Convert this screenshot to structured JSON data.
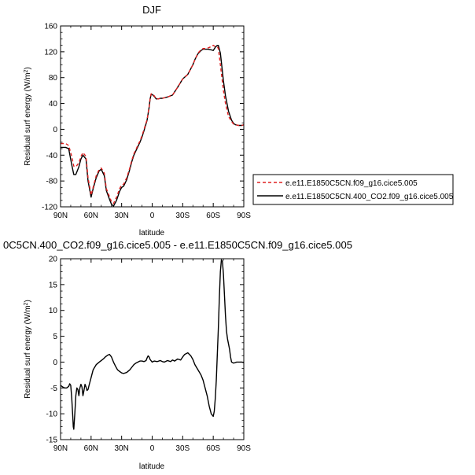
{
  "chart_data": [
    {
      "type": "line",
      "title": "DJF",
      "xlabel": "latitude",
      "ylabel": "Residual surf energy (W/m",
      "ylabel_sup": "2",
      "ylabel_close": ")",
      "xlim": [
        90,
        -90
      ],
      "ylim": [
        -120,
        160
      ],
      "x_ticks": [
        {
          "value": 90,
          "label": "90N"
        },
        {
          "value": 60,
          "label": "60N"
        },
        {
          "value": 30,
          "label": "30N"
        },
        {
          "value": 0,
          "label": "0"
        },
        {
          "value": -30,
          "label": "30S"
        },
        {
          "value": -60,
          "label": "60S"
        },
        {
          "value": -90,
          "label": "90S"
        }
      ],
      "y_ticks": [
        -120,
        -80,
        -40,
        0,
        40,
        80,
        120,
        160
      ],
      "legend_position": "right",
      "series": [
        {
          "name": "e.e11.E1850C5CN.f09_g16.cice5.005",
          "color": "#e02020",
          "dash": "dashed",
          "x": [
            90,
            85,
            82,
            79,
            77,
            75,
            72,
            70,
            68,
            65,
            63,
            60,
            58,
            55,
            52,
            50,
            47,
            45,
            42,
            40,
            38,
            35,
            32,
            30,
            28,
            25,
            22,
            20,
            18,
            15,
            12,
            10,
            8,
            5,
            3,
            2,
            1,
            0,
            -2,
            -4,
            -6,
            -8,
            -10,
            -15,
            -20,
            -25,
            -30,
            -35,
            -40,
            -42,
            -45,
            -48,
            -50,
            -52,
            -55,
            -58,
            -60,
            -62,
            -64,
            -65,
            -67,
            -70,
            -72,
            -75,
            -78,
            -80,
            -82,
            -85,
            -88,
            -90
          ],
          "y": [
            -22,
            -22,
            -25,
            -42,
            -57,
            -58,
            -52,
            -42,
            -36,
            -42,
            -75,
            -102,
            -90,
            -72,
            -62,
            -60,
            -68,
            -92,
            -104,
            -112,
            -115,
            -105,
            -92,
            -86,
            -85,
            -75,
            -60,
            -48,
            -38,
            -28,
            -18,
            -10,
            0,
            15,
            35,
            48,
            55,
            55,
            52,
            47,
            47,
            48,
            48,
            50,
            53,
            65,
            78,
            85,
            100,
            108,
            118,
            123,
            125,
            125,
            126,
            128,
            130,
            128,
            128,
            125,
            100,
            60,
            40,
            20,
            12,
            8,
            7,
            6,
            6,
            7
          ]
        },
        {
          "name": "e.e11.E1850C5CN.400_CO2.f09_g16.cice5.005",
          "color": "#000000",
          "dash": "solid",
          "x": [
            90,
            85,
            82,
            79,
            77,
            75,
            72,
            70,
            68,
            65,
            63,
            60,
            58,
            55,
            52,
            50,
            47,
            45,
            42,
            40,
            38,
            35,
            32,
            30,
            28,
            25,
            22,
            20,
            18,
            15,
            12,
            10,
            8,
            5,
            3,
            2,
            1,
            0,
            -2,
            -4,
            -6,
            -8,
            -10,
            -15,
            -20,
            -25,
            -30,
            -35,
            -40,
            -42,
            -45,
            -48,
            -50,
            -52,
            -55,
            -58,
            -60,
            -62,
            -64,
            -65,
            -67,
            -70,
            -72,
            -75,
            -78,
            -80,
            -82,
            -85,
            -88,
            -90
          ],
          "y": [
            -28,
            -28,
            -30,
            -55,
            -70,
            -70,
            -58,
            -46,
            -40,
            -46,
            -80,
            -105,
            -92,
            -75,
            -64,
            -62,
            -72,
            -95,
            -108,
            -116,
            -119,
            -110,
            -96,
            -90,
            -88,
            -78,
            -62,
            -50,
            -40,
            -30,
            -20,
            -12,
            -2,
            14,
            34,
            47,
            54,
            54,
            51,
            47,
            47,
            48,
            48,
            50,
            53,
            65,
            78,
            85,
            100,
            108,
            117,
            122,
            124,
            124,
            124,
            123,
            122,
            127,
            130,
            130,
            118,
            75,
            52,
            28,
            14,
            9,
            7,
            6,
            6,
            7
          ]
        }
      ]
    },
    {
      "type": "line",
      "title": "0C5CN.400_CO2.f09_g16.cice5.005 - e.e11.E1850C5CN.f09_g16.cice5.005",
      "xlabel": "latitude",
      "ylabel": "Residual surf energy (W/m",
      "ylabel_sup": "2",
      "ylabel_close": ")",
      "xlim": [
        90,
        -90
      ],
      "ylim": [
        -15,
        20
      ],
      "x_ticks": [
        {
          "value": 90,
          "label": "90N"
        },
        {
          "value": 60,
          "label": "60N"
        },
        {
          "value": 30,
          "label": "30N"
        },
        {
          "value": 0,
          "label": "0"
        },
        {
          "value": -30,
          "label": "30S"
        },
        {
          "value": -60,
          "label": "60S"
        },
        {
          "value": -90,
          "label": "90S"
        }
      ],
      "y_ticks": [
        -15,
        -10,
        -5,
        0,
        5,
        10,
        15,
        20
      ],
      "series": [
        {
          "color": "#000000",
          "dash": "solid",
          "x": [
            90,
            88,
            86,
            84,
            82,
            81,
            80,
            79,
            78,
            77.5,
            77,
            76,
            75,
            74,
            73,
            72,
            71,
            70,
            69,
            68,
            67,
            66,
            65,
            64,
            63,
            62,
            60,
            58,
            55,
            52,
            50,
            48,
            46,
            44,
            42,
            40,
            38,
            36,
            34,
            32,
            30,
            28,
            25,
            22,
            20,
            18,
            16,
            14,
            12,
            10,
            8,
            6,
            5,
            4,
            3,
            2,
            0,
            -2,
            -5,
            -8,
            -10,
            -12,
            -15,
            -18,
            -20,
            -22,
            -25,
            -28,
            -30,
            -32,
            -35,
            -38,
            -40,
            -42,
            -45,
            -48,
            -50,
            -52,
            -54,
            -56,
            -58,
            -60,
            -61,
            -62,
            -63,
            -64,
            -65,
            -66,
            -67,
            -68,
            -69,
            -70,
            -71,
            -72,
            -73,
            -74,
            -75,
            -76,
            -77,
            -78,
            -80,
            -83,
            -86,
            -88,
            -90
          ],
          "y": [
            -4.5,
            -4.8,
            -5.0,
            -5.0,
            -4.7,
            -4.2,
            -4.5,
            -7.0,
            -10.5,
            -12.5,
            -13.0,
            -10.0,
            -6.5,
            -5.0,
            -5.3,
            -6.5,
            -5.0,
            -4.3,
            -4.8,
            -6.5,
            -5.5,
            -4.3,
            -4.8,
            -5.5,
            -5.3,
            -4.5,
            -3.0,
            -1.5,
            -0.5,
            0.0,
            0.3,
            0.6,
            1.0,
            1.3,
            1.5,
            1.0,
            0.0,
            -0.8,
            -1.5,
            -1.8,
            -2.1,
            -2.2,
            -2.0,
            -1.5,
            -1.0,
            -0.5,
            -0.2,
            0.0,
            0.2,
            0.2,
            0.1,
            0.3,
            0.8,
            1.2,
            1.0,
            0.5,
            0.0,
            0.2,
            0.1,
            0.3,
            0.1,
            0.0,
            0.3,
            0.1,
            0.4,
            0.2,
            0.6,
            0.4,
            1.0,
            1.5,
            1.8,
            1.2,
            0.5,
            -0.5,
            -1.5,
            -2.5,
            -3.5,
            -5.0,
            -6.5,
            -8.5,
            -10.0,
            -10.5,
            -9.5,
            -7.0,
            -3.5,
            1.5,
            6.5,
            12.5,
            17.5,
            19.8,
            19.5,
            17.0,
            13.0,
            9.0,
            6.0,
            4.5,
            3.5,
            2.5,
            1.0,
            0.0,
            -0.2,
            0.0,
            0.0,
            0.0,
            -0.1
          ]
        }
      ]
    }
  ]
}
